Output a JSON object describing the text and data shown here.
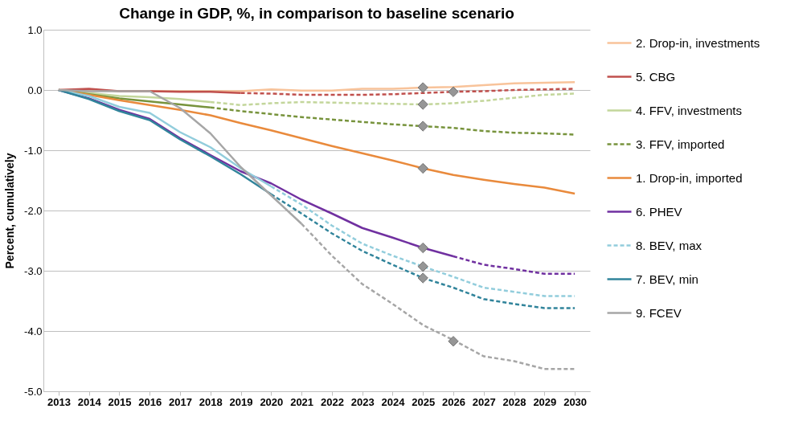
{
  "chart_data": {
    "type": "line",
    "title": "Change in GDP, %, in comparison to baseline scenario",
    "ylabel": "Percent, cumulatively",
    "categories": [
      "2013",
      "2014",
      "2015",
      "2016",
      "2017",
      "2018",
      "2019",
      "2020",
      "2021",
      "2022",
      "2023",
      "2024",
      "2025",
      "2026",
      "2027",
      "2028",
      "2029",
      "2030"
    ],
    "ylim": [
      -5,
      1
    ],
    "yticks": [
      {
        "value": 1,
        "label": "1.0"
      },
      {
        "value": 0,
        "label": "0.0"
      },
      {
        "value": -1,
        "label": "-1.0"
      },
      {
        "value": -2,
        "label": "-2.0"
      },
      {
        "value": -3,
        "label": "-3.0"
      },
      {
        "value": -4,
        "label": "-4.0"
      },
      {
        "value": -5,
        "label": "-5.0"
      }
    ],
    "grid": "y",
    "legend": "right",
    "series": [
      {
        "name": "2. Drop-in, investments",
        "color": "#f8c39a",
        "line_style": "solid",
        "values": [
          0,
          0,
          -0.02,
          -0.02,
          -0.02,
          -0.02,
          -0.02,
          0.01,
          -0.01,
          -0.01,
          0.02,
          0.02,
          0.04,
          0.05,
          0.08,
          0.11,
          0.12,
          0.13
        ]
      },
      {
        "name": "5. CBG",
        "color": "#c0504d",
        "line_style": "solid",
        "values": [
          0,
          0.02,
          -0.02,
          -0.02,
          -0.03,
          -0.03,
          -0.05,
          null,
          null,
          null,
          null,
          null,
          null,
          null,
          null,
          null,
          null,
          null
        ]
      },
      {
        "color": "#c0504d",
        "line_style": "dashed",
        "values": [
          null,
          null,
          null,
          null,
          null,
          null,
          -0.05,
          -0.06,
          -0.08,
          -0.08,
          -0.08,
          -0.07,
          -0.05,
          -0.03,
          -0.02,
          0,
          0.01,
          0.02
        ]
      },
      {
        "name": "4. FFV, investments",
        "color": "#c3d69b",
        "line_style": "solid",
        "values": [
          0,
          -0.05,
          -0.1,
          -0.12,
          -0.15,
          -0.2,
          null,
          null,
          null,
          null,
          null,
          null,
          null,
          null,
          null,
          null,
          null,
          null
        ]
      },
      {
        "color": "#c3d69b",
        "line_style": "dashed",
        "values": [
          null,
          null,
          null,
          null,
          null,
          -0.2,
          -0.25,
          -0.22,
          -0.2,
          -0.21,
          -0.22,
          -0.23,
          -0.24,
          -0.22,
          -0.18,
          -0.13,
          -0.08,
          -0.06
        ]
      },
      {
        "color": "#77933c",
        "line_style": "solid",
        "values": [
          0,
          -0.07,
          -0.14,
          -0.19,
          -0.24,
          -0.29,
          null,
          null,
          null,
          null,
          null,
          null,
          null,
          null,
          null,
          null,
          null,
          null
        ]
      },
      {
        "name": "3. FFV, imported",
        "color": "#77933c",
        "line_style": "dashed",
        "values": [
          null,
          null,
          null,
          null,
          null,
          -0.29,
          -0.35,
          -0.4,
          -0.45,
          -0.49,
          -0.53,
          -0.57,
          -0.6,
          -0.63,
          -0.68,
          -0.71,
          -0.72,
          -0.74
        ]
      },
      {
        "name": "1. Drop-in, imported",
        "color": "#e98a3c",
        "line_style": "solid",
        "values": [
          0,
          -0.08,
          -0.17,
          -0.25,
          -0.33,
          -0.42,
          -0.55,
          -0.67,
          -0.8,
          -0.93,
          -1.05,
          -1.17,
          -1.3,
          -1.41,
          -1.49,
          -1.56,
          -1.62,
          -1.72
        ]
      },
      {
        "name": "6. PHEV",
        "color": "#7030a0",
        "line_style": "solid",
        "values": [
          0,
          -0.14,
          -0.33,
          -0.48,
          -0.8,
          -1.08,
          -1.35,
          -1.55,
          -1.82,
          -2.05,
          -2.29,
          -2.45,
          -2.62,
          -2.76,
          null,
          null,
          null,
          null
        ]
      },
      {
        "color": "#7030a0",
        "line_style": "dashed",
        "values": [
          null,
          null,
          null,
          null,
          null,
          null,
          null,
          null,
          null,
          null,
          null,
          null,
          null,
          -2.76,
          -2.9,
          -2.97,
          -3.05,
          -3.05
        ]
      },
      {
        "color": "#92cddc",
        "line_style": "solid",
        "values": [
          0,
          -0.1,
          -0.28,
          -0.38,
          -0.7,
          -0.95,
          -1.3,
          -1.6,
          null,
          null,
          null,
          null,
          null,
          null,
          null,
          null,
          null,
          null
        ]
      },
      {
        "name": "8. BEV, max",
        "color": "#92cddc",
        "line_style": "dashed",
        "values": [
          null,
          null,
          null,
          null,
          null,
          null,
          null,
          -1.6,
          -1.9,
          -2.25,
          -2.55,
          -2.75,
          -2.93,
          -3.1,
          -3.28,
          -3.35,
          -3.42,
          -3.42
        ]
      },
      {
        "name": "7. BEV, min",
        "color": "#31849b",
        "line_style": "solid",
        "values": [
          0,
          -0.15,
          -0.35,
          -0.5,
          -0.82,
          -1.1,
          -1.4,
          -1.73,
          null,
          null,
          null,
          null,
          null,
          null,
          null,
          null,
          null,
          null
        ]
      },
      {
        "color": "#31849b",
        "line_style": "dashed",
        "values": [
          null,
          null,
          null,
          null,
          null,
          null,
          null,
          -1.73,
          -2.05,
          -2.38,
          -2.67,
          -2.9,
          -3.12,
          -3.28,
          -3.47,
          -3.55,
          -3.62,
          -3.62
        ]
      },
      {
        "name": "9. FCEV",
        "color": "#a6a6a6",
        "line_style": "solid",
        "values": [
          0,
          -0.02,
          -0.02,
          -0.02,
          -0.3,
          -0.72,
          -1.28,
          -1.75,
          -2.22,
          null,
          null,
          null,
          null,
          null,
          null,
          null,
          null,
          null
        ]
      },
      {
        "color": "#a6a6a6",
        "line_style": "dashed",
        "values": [
          null,
          null,
          null,
          null,
          null,
          null,
          null,
          null,
          -2.22,
          -2.75,
          -3.22,
          -3.55,
          -3.9,
          -4.15,
          -4.42,
          -4.5,
          -4.63,
          -4.63
        ]
      },
      {
        "type": "scatter",
        "marker": "diamond",
        "color": "#969696",
        "values": [
          null,
          null,
          null,
          null,
          null,
          null,
          null,
          null,
          null,
          null,
          null,
          null,
          0.04,
          -0.03,
          null,
          null,
          null,
          null
        ]
      },
      {
        "type": "scatter",
        "marker": "diamond",
        "color": "#969696",
        "values": [
          null,
          null,
          null,
          null,
          null,
          null,
          null,
          null,
          null,
          null,
          null,
          null,
          -0.24,
          -4.17,
          null,
          null,
          null,
          null
        ]
      },
      {
        "type": "scatter",
        "marker": "diamond",
        "color": "#969696",
        "values": [
          null,
          null,
          null,
          null,
          null,
          null,
          null,
          null,
          null,
          null,
          null,
          null,
          -0.6,
          null,
          null,
          null,
          null,
          null
        ]
      },
      {
        "type": "scatter",
        "marker": "diamond",
        "color": "#969696",
        "values": [
          null,
          null,
          null,
          null,
          null,
          null,
          null,
          null,
          null,
          null,
          null,
          null,
          -1.3,
          null,
          null,
          null,
          null,
          null
        ]
      },
      {
        "type": "scatter",
        "marker": "diamond",
        "color": "#969696",
        "values": [
          null,
          null,
          null,
          null,
          null,
          null,
          null,
          null,
          null,
          null,
          null,
          null,
          -2.62,
          null,
          null,
          null,
          null,
          null
        ]
      },
      {
        "type": "scatter",
        "marker": "diamond",
        "color": "#969696",
        "values": [
          null,
          null,
          null,
          null,
          null,
          null,
          null,
          null,
          null,
          null,
          null,
          null,
          -2.93,
          null,
          null,
          null,
          null,
          null
        ]
      },
      {
        "type": "scatter",
        "marker": "diamond",
        "color": "#969696",
        "values": [
          null,
          null,
          null,
          null,
          null,
          null,
          null,
          null,
          null,
          null,
          null,
          null,
          -3.12,
          null,
          null,
          null,
          null,
          null
        ]
      }
    ]
  }
}
